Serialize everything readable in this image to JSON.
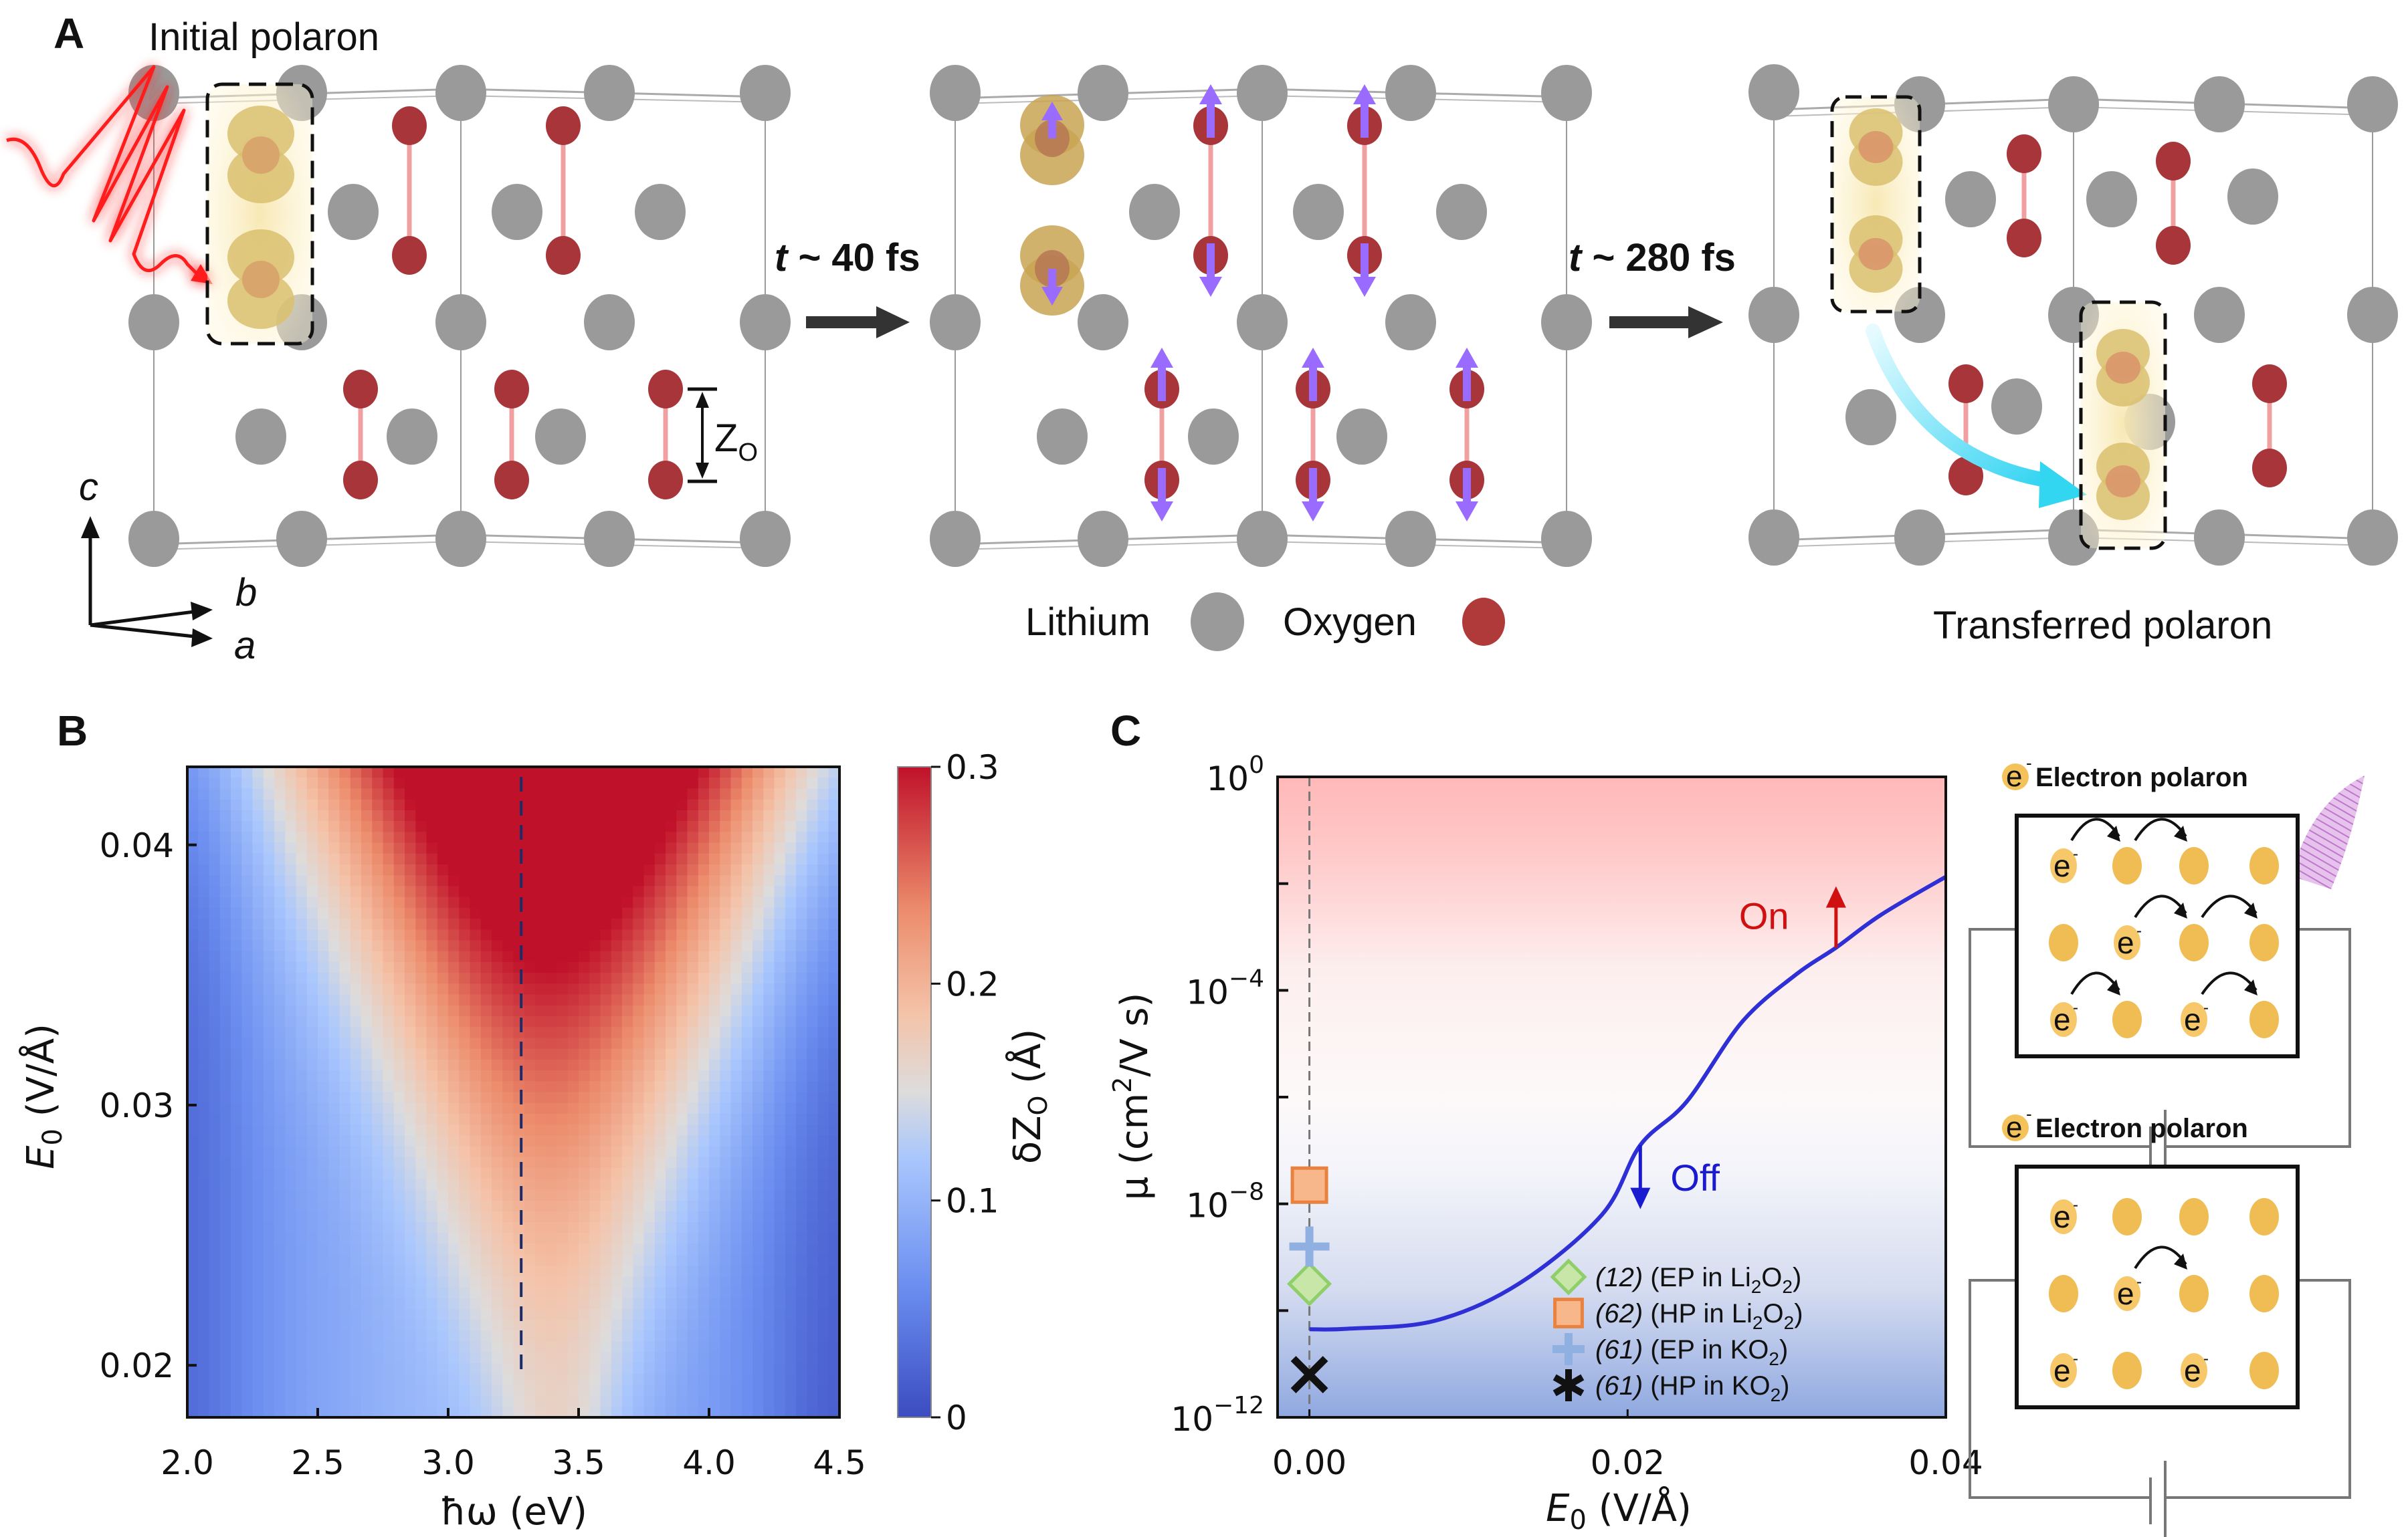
{
  "figure": {
    "panel_labels": {
      "a": "A",
      "b": "B",
      "c": "C"
    },
    "panel_a": {
      "initial_label": "Initial polaron",
      "transferred_label": "Transferred polaron",
      "step1_time": "t ~ 40 fs",
      "step1_time_var": "t",
      "step1_time_rest": " ~ 40 fs",
      "step2_time_var": "t",
      "step2_time_rest": " ~ 280 fs",
      "zo_label_main": "Z",
      "zo_label_sub": "O",
      "axes": {
        "c": "c",
        "b": "b",
        "a": "a"
      },
      "legend": [
        {
          "label": "Lithium",
          "color": "#9a9a9a"
        },
        {
          "label": "Oxygen",
          "color": "#b03a3a"
        }
      ],
      "colors": {
        "lithium": "#9a9a9a",
        "oxygen": "#a8353a",
        "bond": "#f0a0a0",
        "polaron": "#d9b96a",
        "displacement_arrow": "#9a6bff",
        "transfer_arrow": "#33d6f0",
        "light_pulse": "#ff2020"
      }
    },
    "schematics": [
      {
        "title": "Electron polaron",
        "state": "on",
        "grid": [
          [
            "e",
            "o",
            "o",
            "o"
          ],
          [
            "o",
            "e",
            "o",
            "o"
          ],
          [
            "e",
            "o",
            "e",
            "o"
          ]
        ],
        "hops": 6,
        "light": true
      },
      {
        "title": "Electron polaron",
        "state": "off",
        "grid": [
          [
            "e",
            "o",
            "o",
            "o"
          ],
          [
            "o",
            "e",
            "o",
            "o"
          ],
          [
            "e",
            "o",
            "e",
            "o"
          ]
        ],
        "hops": 1,
        "light": false
      }
    ],
    "electron_symbol": "e",
    "electron_charge": "-"
  },
  "chart_data": [
    {
      "id": "B",
      "type": "heatmap",
      "title": "",
      "xlabel": "ħω (eV)",
      "ylabel": "E0 (V/Å)",
      "ylabel_main": "E",
      "ylabel_sub": "0",
      "ylabel_rest": " (V/Å)",
      "xlim": [
        2.0,
        4.5
      ],
      "ylim": [
        0.018,
        0.043
      ],
      "xticks": [
        2.0,
        2.5,
        3.0,
        3.5,
        4.0,
        4.5
      ],
      "xtick_labels": [
        "2.0",
        "2.5",
        "3.0",
        "3.5",
        "4.0",
        "4.5"
      ],
      "yticks": [
        0.02,
        0.03,
        0.04
      ],
      "ytick_labels": [
        "0.02",
        "0.03",
        "0.04"
      ],
      "colorbar": {
        "label": "δZO (Å)",
        "label_pre": "δZ",
        "label_sub": "O",
        "label_post": " (Å)",
        "range": [
          0,
          0.3
        ],
        "ticks": [
          0,
          0.1,
          0.2,
          0.3
        ],
        "tick_labels": [
          "0",
          "0.1",
          "0.2",
          "0.3"
        ],
        "colormap": "coolwarm"
      },
      "resonance_line_x": 3.28,
      "peak": {
        "x": 3.45,
        "y": 0.043,
        "value": 0.3
      },
      "description": "δZO peaks near ħω≈3.4 eV and grows with E0; V-shaped high-response region widening toward high field"
    },
    {
      "id": "C",
      "type": "line",
      "title": "",
      "xlabel": "E0 (V/Å)",
      "xlabel_main": "E",
      "xlabel_sub": "0",
      "xlabel_rest": " (V/Å)",
      "ylabel": "μ (cm²/V s)",
      "ylabel_pre": "μ (cm",
      "ylabel_sup": "2",
      "ylabel_post": "/V s)",
      "yscale": "log",
      "xlim": [
        -0.002,
        0.04
      ],
      "ylim_log10": [
        -12,
        0
      ],
      "xticks": [
        0.0,
        0.02,
        0.04
      ],
      "xtick_labels": [
        "0.00",
        "0.02",
        "0.04"
      ],
      "yticks_log10": [
        0,
        -4,
        -8,
        -12
      ],
      "ytick_base": "10",
      "ytick_exponents": [
        "0",
        "−4",
        "−8",
        "−12"
      ],
      "minor_yticks_log10": [
        -2,
        -6,
        -10
      ],
      "background": {
        "top_color": "#ffb8b8",
        "bottom_color": "#8fa8e0",
        "mid_color": "#ffffff"
      },
      "series": [
        {
          "name": "μ(E0)",
          "color": "#2f2fd6",
          "x": [
            0.0,
            0.0024,
            0.0079,
            0.0132,
            0.0184,
            0.0208,
            0.0237,
            0.0272,
            0.0306,
            0.0331,
            0.0359,
            0.0399
          ],
          "log10_y": [
            -10.35,
            -10.34,
            -10.19,
            -9.49,
            -8.2,
            -6.9,
            -6.09,
            -4.59,
            -3.7,
            -3.2,
            -2.59,
            -1.89
          ]
        }
      ],
      "reference_points": [
        {
          "ref": "(12)",
          "label": "(EP in Li2O2)",
          "desc_pre": "(EP in Li",
          "sub1": "2",
          "mid": "O",
          "sub2": "2",
          "desc_post": ")",
          "marker": "diamond",
          "color": "#8fcf6a",
          "x": 0.0,
          "log10_y": -9.5
        },
        {
          "ref": "(62)",
          "label": "(HP in Li2O2)",
          "desc_pre": "(HP in Li",
          "sub1": "2",
          "mid": "O",
          "sub2": "2",
          "desc_post": ")",
          "marker": "square",
          "color": "#f4a46a",
          "x": 0.0,
          "log10_y": -7.65
        },
        {
          "ref": "(61)",
          "label": "(EP in KO2)",
          "desc_pre": "(EP in KO",
          "sub1": "",
          "mid": "",
          "sub2": "2",
          "desc_post": ")",
          "marker": "plus",
          "color": "#8fb0e0",
          "x": 0.0,
          "log10_y": -8.8
        },
        {
          "ref": "(61)",
          "label": "(HP in KO2)",
          "desc_pre": "(HP in KO",
          "sub1": "",
          "mid": "",
          "sub2": "2",
          "desc_post": ")",
          "marker": "x",
          "legend_marker": "asterisk",
          "color": "#111111",
          "x": 0.0,
          "log10_y": -11.2
        }
      ],
      "annotations": [
        {
          "text": "On",
          "color": "#d01010",
          "x": 0.0331,
          "log10_y_from": -3.2,
          "log10_y_to": -2.05,
          "direction": "up"
        },
        {
          "text": "Off",
          "color": "#1a1ad0",
          "x": 0.0208,
          "log10_y_from": -6.9,
          "log10_y_to": -8.1,
          "direction": "down"
        }
      ],
      "vline_x": 0.0,
      "legend_position": "lower-right"
    }
  ]
}
